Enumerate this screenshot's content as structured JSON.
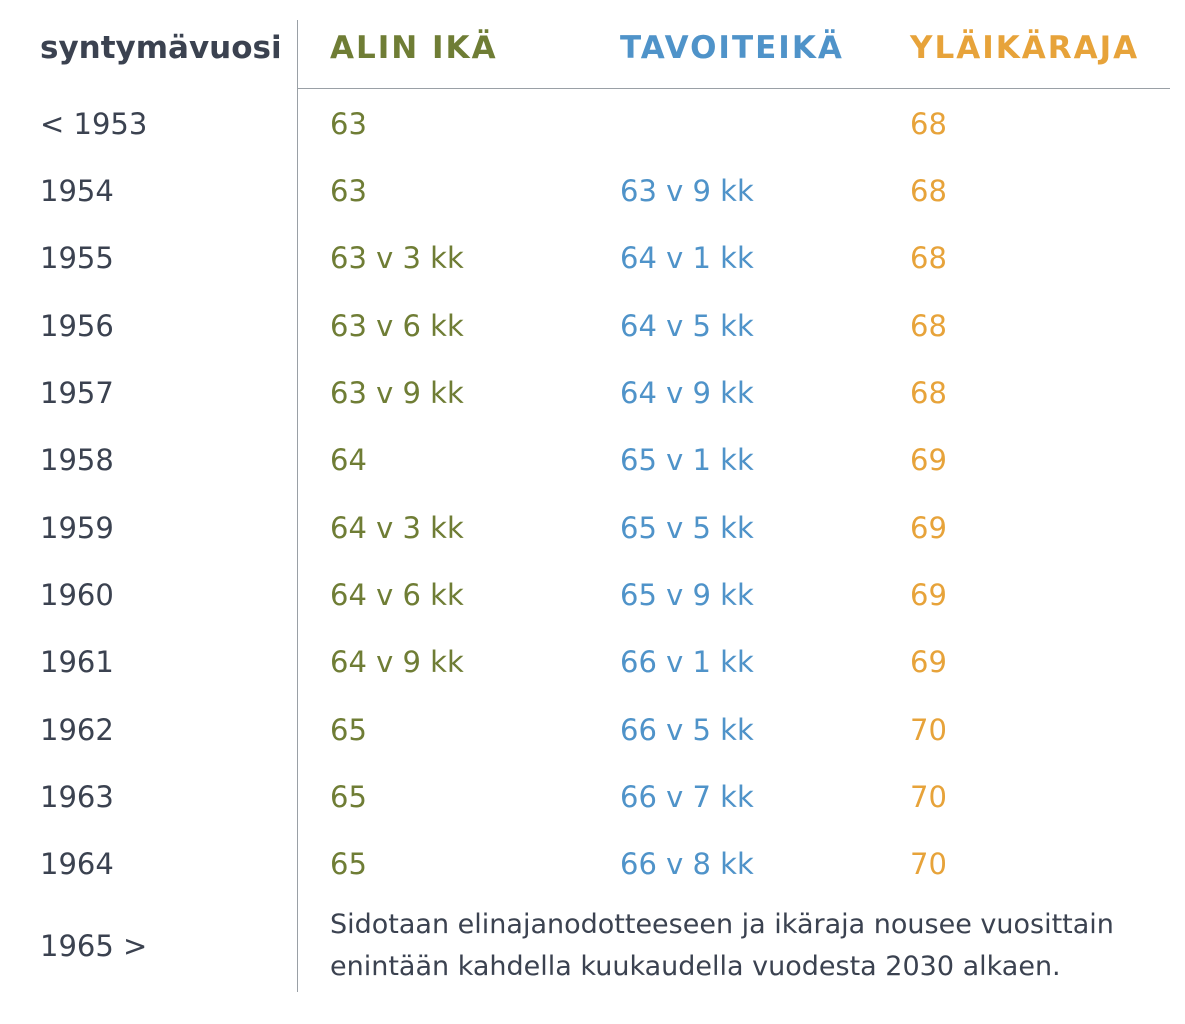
{
  "colors": {
    "text": "#3b4250",
    "alin": "#6f7d35",
    "tavoite": "#4f93c9",
    "ylaraja": "#e7a33a",
    "rule": "#9aa0a6"
  },
  "headers": [
    "syntymävuosi",
    "ALIN IKÄ",
    "TAVOITEIKÄ",
    "YLÄIKÄRAJA"
  ],
  "rows": [
    [
      "< 1953",
      "63",
      "",
      "68"
    ],
    [
      "1954",
      "63",
      "63 v 9 kk",
      "68"
    ],
    [
      "1955",
      "63 v 3 kk",
      "64 v 1 kk",
      "68"
    ],
    [
      "1956",
      "63 v 6 kk",
      "64 v 5 kk",
      "68"
    ],
    [
      "1957",
      "63 v 9 kk",
      "64 v 9 kk",
      "68"
    ],
    [
      "1958",
      "64",
      "65 v 1 kk",
      "69"
    ],
    [
      "1959",
      "64 v 3 kk",
      "65 v 5 kk",
      "69"
    ],
    [
      "1960",
      "64 v 6 kk",
      "65 v 9 kk",
      "69"
    ],
    [
      "1961",
      "64 v 9 kk",
      "66 v 1 kk",
      "69"
    ],
    [
      "1962",
      "65",
      "66 v 5 kk",
      "70"
    ],
    [
      "1963",
      "65",
      "66 v 7 kk",
      "70"
    ],
    [
      "1964",
      "65",
      "66 v 8 kk",
      "70"
    ]
  ],
  "last_row": {
    "year": "1965 >",
    "note": "Sidotaan elinajanodotteeseen ja ikäraja nousee vuosittain enintään kahdella kuukaudella vuodesta 2030 alkaen."
  }
}
